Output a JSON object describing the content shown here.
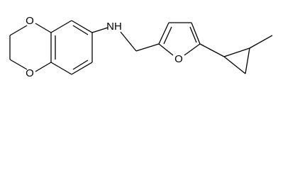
{
  "atoms": {
    "labels": [
      "O",
      "O",
      "NH",
      "O"
    ]
  }
}
